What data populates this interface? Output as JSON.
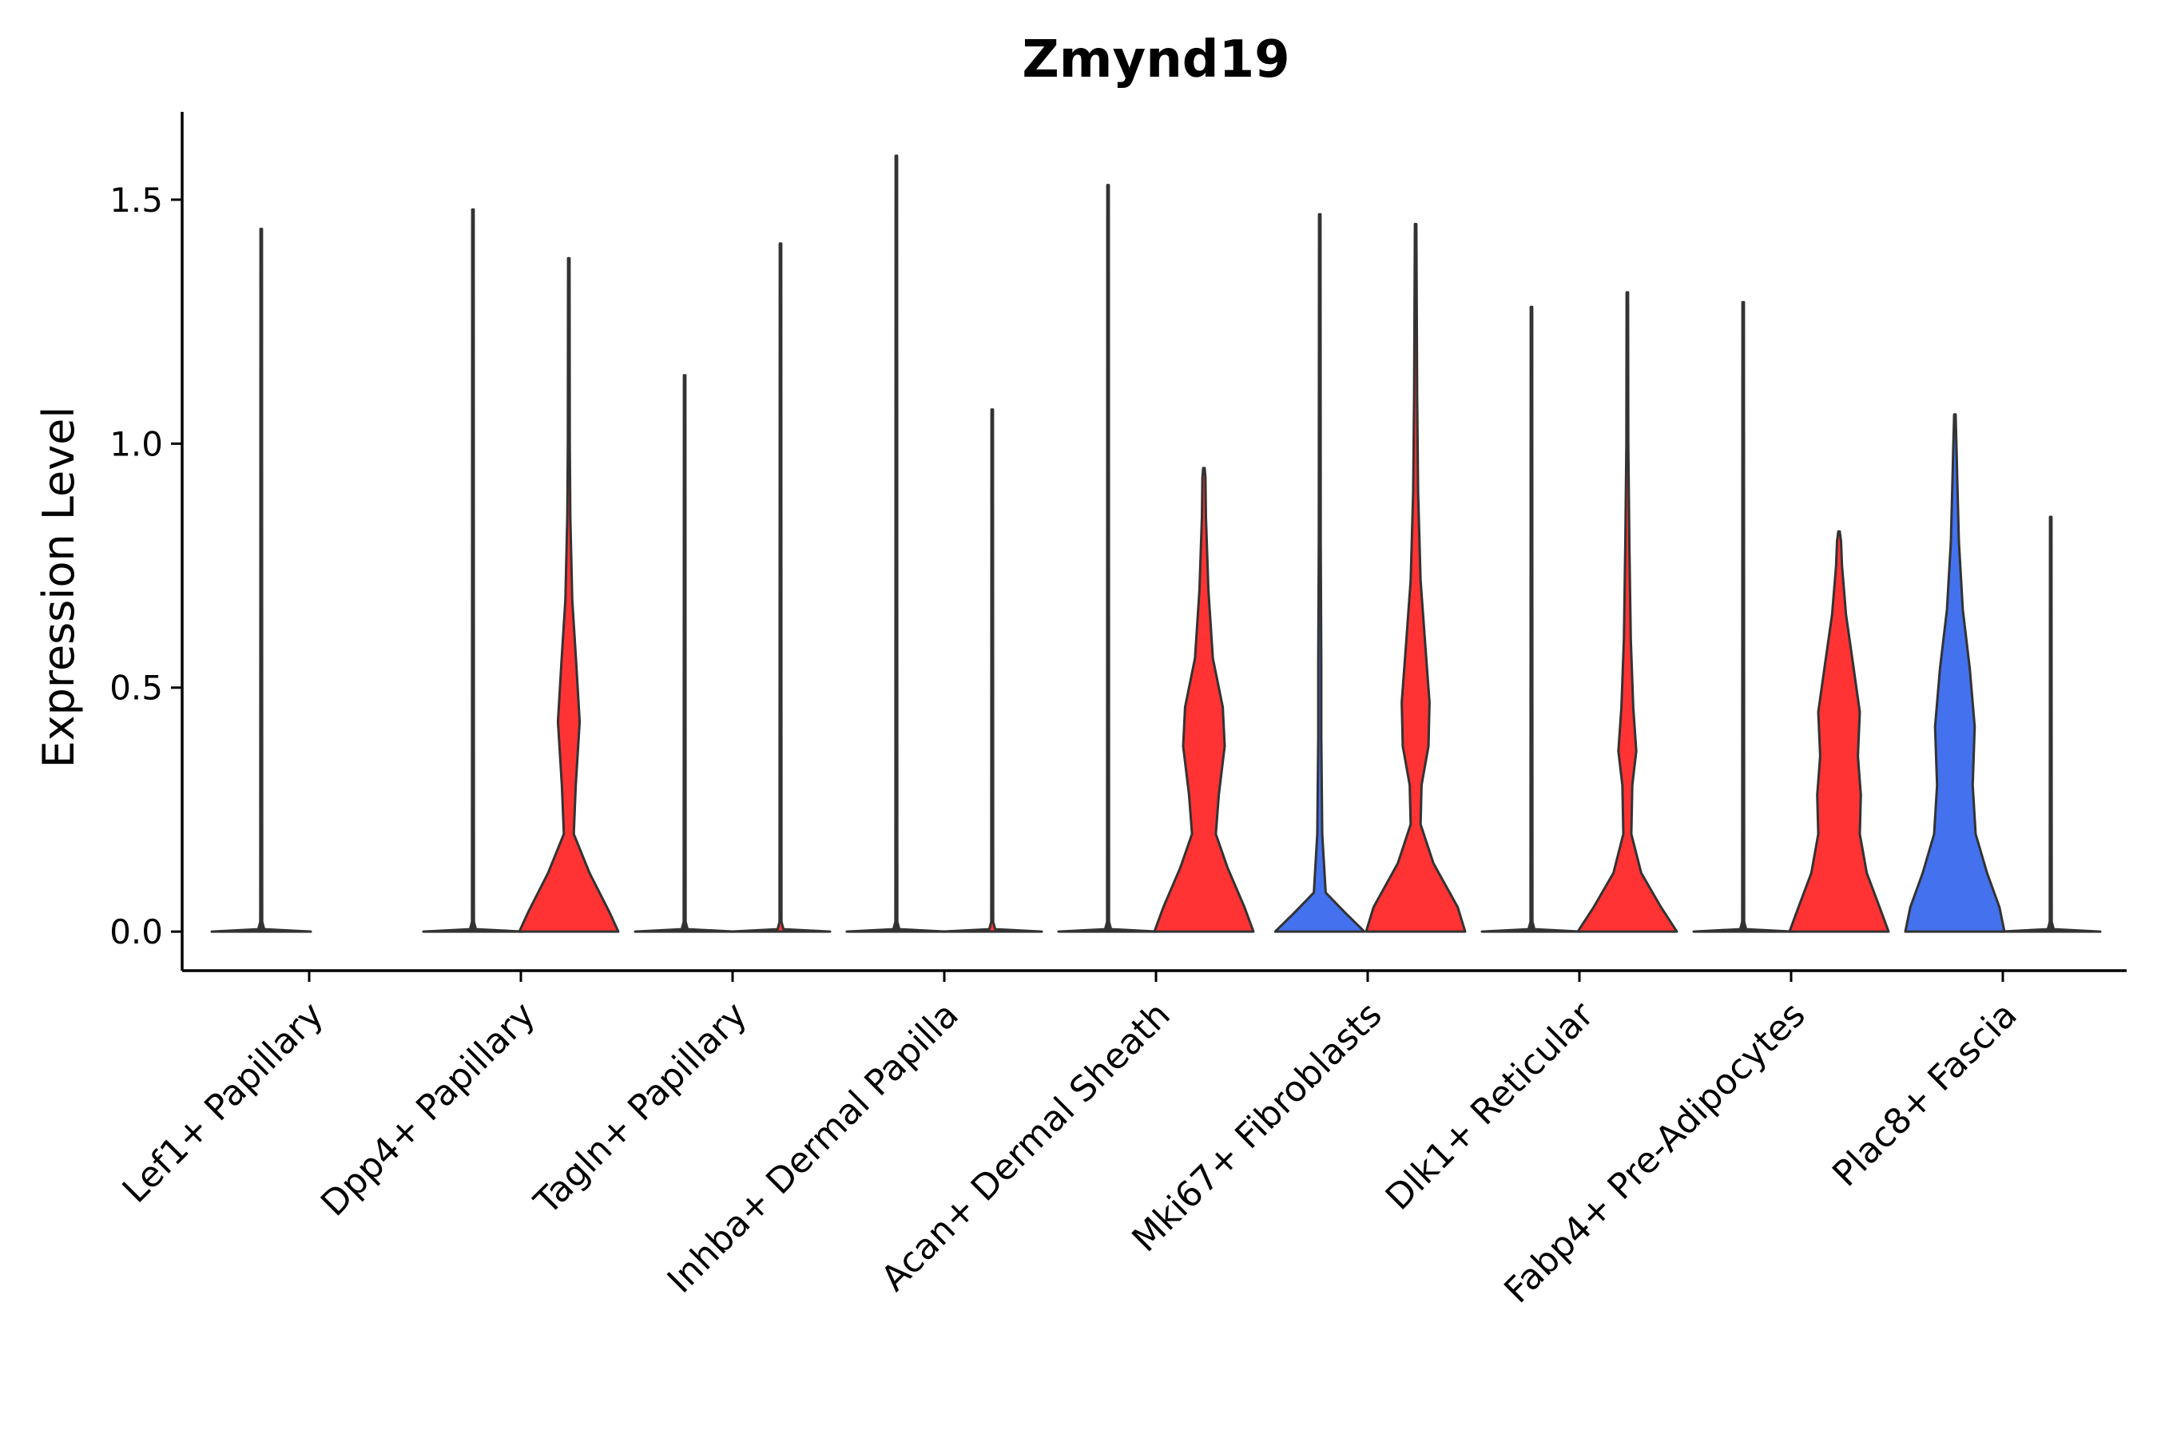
{
  "chart_data": {
    "type": "violin",
    "title": "Zmynd19",
    "xlabel": "",
    "ylabel": "Expression Level",
    "ylim": [
      -0.08,
      1.68
    ],
    "yticks": [
      0.0,
      0.5,
      1.0,
      1.5
    ],
    "ytick_labels": [
      "0.0",
      "0.5",
      "1.0",
      "1.5"
    ],
    "legend": "none",
    "group_colors": {
      "low": "#333333",
      "high": "#FF3333",
      "mid": "#4472EE"
    },
    "categories": [
      "Lef1+ Papillary",
      "Dpp4+ Papillary",
      "Tagln+ Papillary",
      "Inhba+ Dermal Papilla",
      "Acan+ Dermal Sheath",
      "Mki67+ Fibroblasts",
      "Dlk1+ Reticular",
      "Fabp4+ Pre-Adipocytes",
      "Plac8+ Fascia"
    ],
    "series": [
      {
        "name": "low",
        "color": "#333333",
        "violins": [
          {
            "category": "Lef1+ Papillary",
            "max": 1.44,
            "shape": "flat"
          },
          {
            "category": "Dpp4+ Papillary",
            "max": 1.48,
            "shape": "flat"
          },
          {
            "category": "Tagln+ Papillary",
            "max": 1.14,
            "shape": "flat"
          },
          {
            "category": "Inhba+ Dermal Papilla",
            "max": 1.59,
            "shape": "flat"
          },
          {
            "category": "Acan+ Dermal Sheath",
            "max": 1.53,
            "shape": "flat"
          },
          {
            "category": "Dlk1+ Reticular",
            "max": 1.28,
            "shape": "flat"
          },
          {
            "category": "Fabp4+ Pre-Adipocytes",
            "max": 1.29,
            "shape": "flat"
          }
        ]
      },
      {
        "name": "high",
        "color": "#FF3333",
        "violins": [
          {
            "category": "Dpp4+ Papillary",
            "max": 1.38,
            "shape": "bulge_a"
          },
          {
            "category": "Tagln+ Papillary",
            "max": 1.41,
            "shape": "flat"
          },
          {
            "category": "Inhba+ Dermal Papilla",
            "max": 1.07,
            "shape": "flat"
          },
          {
            "category": "Acan+ Dermal Sheath",
            "max": 0.95,
            "shape": "bulge_b"
          },
          {
            "category": "Mki67+ Fibroblasts",
            "max": 1.45,
            "shape": "bulge_c"
          },
          {
            "category": "Dlk1+ Reticular",
            "max": 1.31,
            "shape": "bulge_d"
          },
          {
            "category": "Fabp4+ Pre-Adipocytes",
            "max": 0.82,
            "shape": "bulge_e"
          }
        ]
      },
      {
        "name": "mid",
        "color": "#4472EE",
        "violins": [
          {
            "category": "Mki67+ Fibroblasts",
            "max": 1.47,
            "shape": "small"
          },
          {
            "category": "Plac8+ Fascia",
            "max": 1.06,
            "shape": "wide"
          },
          {
            "category": "Plac8+ Fascia",
            "max": 0.85,
            "shape": "flat",
            "color": "#333333"
          }
        ]
      }
    ]
  }
}
